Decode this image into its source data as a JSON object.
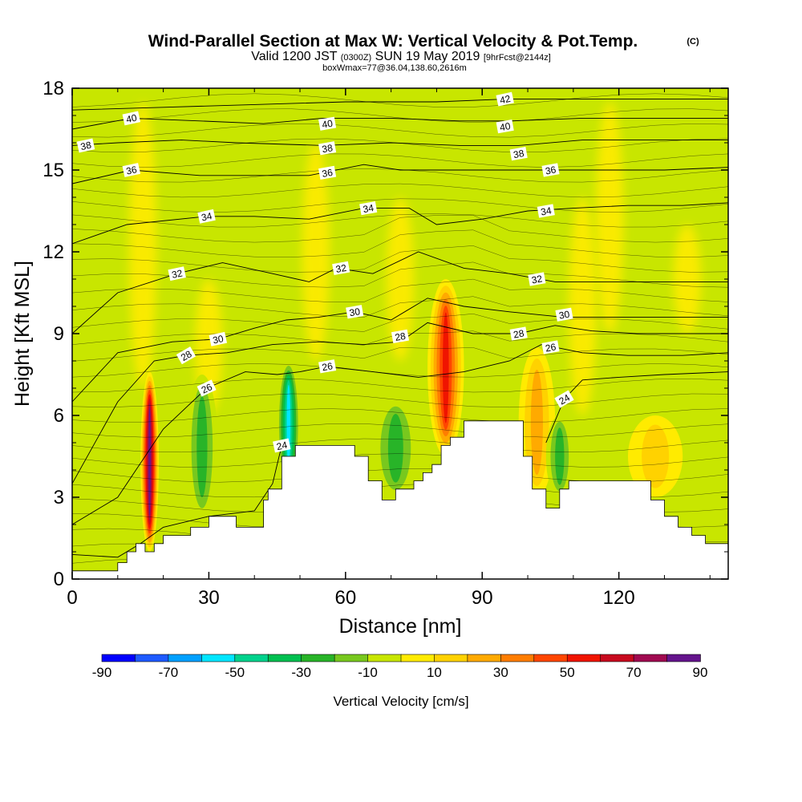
{
  "chart_data": {
    "type": "heatmap",
    "title": "Wind-Parallel Section at Max W: Vertical Velocity & Pot.Temp.",
    "title_mark": "(C)",
    "subtitle_pre": "Valid 1200 JST",
    "subtitle_utc": "(0300Z)",
    "subtitle_date": "SUN 19 May 2019",
    "subtitle_fcst": "[9hrFcst@2144z]",
    "subtitle2": "boxWmax=77@36.04,138.60,2616m",
    "xlabel": "Distance [nm]",
    "ylabel": "Height [Kft MSL]",
    "xlim": [
      0,
      144
    ],
    "ylim": [
      0,
      18
    ],
    "x_ticks": [
      "0",
      "30",
      "60",
      "90",
      "120"
    ],
    "y_ticks": [
      "0",
      "3",
      "6",
      "9",
      "12",
      "15",
      "18"
    ],
    "colorbar": {
      "label": "Vertical Velocity [cm/s]",
      "tick_labels": [
        "-90",
        "-70",
        "-50",
        "-30",
        "-10",
        "10",
        "30",
        "50",
        "70",
        "90"
      ],
      "colors": [
        "#0000ff",
        "#1e5aff",
        "#00a0ff",
        "#00e6ff",
        "#00d28c",
        "#00c050",
        "#28b428",
        "#78c81e",
        "#c8e600",
        "#ffeb00",
        "#ffd200",
        "#ffaa00",
        "#ff7d00",
        "#ff4600",
        "#f01400",
        "#c80a1e",
        "#a00a50",
        "#64148c"
      ]
    },
    "velocity_cells": [
      {
        "x": [
          15,
          19
        ],
        "y": [
          1.0,
          7.6
        ],
        "w": 90
      },
      {
        "x": [
          45,
          50
        ],
        "y": [
          3.3,
          8.0
        ],
        "w": -60
      },
      {
        "x": [
          78,
          86
        ],
        "y": [
          4.5,
          11.0
        ],
        "w": 60
      },
      {
        "x": [
          66,
          76
        ],
        "y": [
          3.0,
          6.6
        ],
        "w": -30
      },
      {
        "x": [
          25,
          32
        ],
        "y": [
          2.2,
          7.5
        ],
        "w": -30
      },
      {
        "x": [
          98,
          106
        ],
        "y": [
          3.0,
          8.5
        ],
        "w": 25
      },
      {
        "x": [
          122,
          134
        ],
        "y": [
          3.0,
          6.0
        ],
        "w": 15
      },
      {
        "x": [
          104,
          110
        ],
        "y": [
          3.0,
          6.0
        ],
        "w": -30
      }
    ],
    "terrain": [
      [
        0,
        0.3
      ],
      [
        10,
        0.3
      ],
      [
        10,
        0.6
      ],
      [
        12,
        0.6
      ],
      [
        12,
        1.0
      ],
      [
        14,
        1.0
      ],
      [
        14,
        1.3
      ],
      [
        16,
        1.3
      ],
      [
        16,
        1.0
      ],
      [
        18,
        1.0
      ],
      [
        18,
        1.3
      ],
      [
        20,
        1.3
      ],
      [
        20,
        1.6
      ],
      [
        26,
        1.6
      ],
      [
        26,
        1.9
      ],
      [
        30,
        1.9
      ],
      [
        30,
        2.3
      ],
      [
        36,
        2.3
      ],
      [
        36,
        1.9
      ],
      [
        42,
        1.9
      ],
      [
        42,
        2.9
      ],
      [
        43,
        2.9
      ],
      [
        43,
        3.3
      ],
      [
        46,
        3.3
      ],
      [
        46,
        4.5
      ],
      [
        49,
        4.5
      ],
      [
        49,
        4.9
      ],
      [
        62,
        4.9
      ],
      [
        62,
        4.5
      ],
      [
        65,
        4.5
      ],
      [
        65,
        3.6
      ],
      [
        68,
        3.6
      ],
      [
        68,
        2.9
      ],
      [
        71,
        2.9
      ],
      [
        71,
        3.3
      ],
      [
        75,
        3.3
      ],
      [
        75,
        3.6
      ],
      [
        77,
        3.6
      ],
      [
        77,
        3.9
      ],
      [
        79,
        3.9
      ],
      [
        79,
        4.2
      ],
      [
        81,
        4.2
      ],
      [
        81,
        4.9
      ],
      [
        83,
        4.9
      ],
      [
        83,
        5.2
      ],
      [
        86,
        5.2
      ],
      [
        86,
        5.8
      ],
      [
        99,
        5.8
      ],
      [
        99,
        4.5
      ],
      [
        101,
        4.5
      ],
      [
        101,
        3.3
      ],
      [
        104,
        3.3
      ],
      [
        104,
        2.6
      ],
      [
        107,
        2.6
      ],
      [
        107,
        3.3
      ],
      [
        109,
        3.3
      ],
      [
        109,
        3.6
      ],
      [
        127,
        3.6
      ],
      [
        127,
        2.9
      ],
      [
        130,
        2.9
      ],
      [
        130,
        2.3
      ],
      [
        133,
        2.3
      ],
      [
        133,
        1.9
      ],
      [
        136,
        1.9
      ],
      [
        136,
        1.6
      ],
      [
        139,
        1.6
      ],
      [
        139,
        1.3
      ],
      [
        144,
        1.3
      ]
    ],
    "theta_levels": [
      {
        "level": "24",
        "label_at": [
          46,
          4.9
        ],
        "points": [
          [
            0,
            0.9
          ],
          [
            10,
            0.8
          ],
          [
            15,
            1.3
          ],
          [
            20,
            1.9
          ],
          [
            30,
            2.3
          ],
          [
            40,
            2.5
          ],
          [
            44,
            3.5
          ],
          [
            46,
            4.9
          ]
        ]
      },
      {
        "level": "24",
        "label_at": [
          108,
          6.6
        ],
        "points": [
          [
            104,
            5.0
          ],
          [
            108,
            6.6
          ],
          [
            112,
            7.3
          ],
          [
            120,
            7.4
          ],
          [
            130,
            7.5
          ],
          [
            144,
            7.6
          ]
        ]
      },
      {
        "level": "26",
        "label_at": [
          29.5,
          7.0
        ],
        "points": [
          [
            0,
            2.0
          ],
          [
            10,
            3.0
          ],
          [
            20,
            5.5
          ],
          [
            29.5,
            7.0
          ],
          [
            38,
            7.6
          ],
          [
            45,
            7.5
          ],
          [
            50,
            7.6
          ],
          [
            56,
            7.8
          ],
          [
            66,
            7.6
          ],
          [
            76,
            7.4
          ],
          [
            86,
            7.6
          ],
          [
            96,
            8.0
          ],
          [
            103,
            8.6
          ],
          [
            112,
            8.3
          ],
          [
            122,
            8.2
          ],
          [
            134,
            8.2
          ],
          [
            144,
            8.3
          ]
        ]
      },
      {
        "level": "28",
        "label_at": [
          25,
          8.2
        ],
        "points": [
          [
            0,
            3.5
          ],
          [
            10,
            6.5
          ],
          [
            18,
            8.0
          ],
          [
            25,
            8.2
          ],
          [
            34,
            8.3
          ],
          [
            44,
            8.6
          ],
          [
            54,
            8.7
          ],
          [
            64,
            8.6
          ],
          [
            72,
            8.7
          ],
          [
            78,
            9.4
          ],
          [
            88,
            9.0
          ],
          [
            98,
            9.0
          ],
          [
            106,
            9.3
          ],
          [
            114,
            9.1
          ],
          [
            124,
            9.0
          ],
          [
            134,
            9.0
          ],
          [
            144,
            9.0
          ]
        ]
      },
      {
        "level": "30",
        "label_at": [
          32,
          8.8
        ],
        "points": [
          [
            0,
            6.5
          ],
          [
            10,
            8.3
          ],
          [
            22,
            8.7
          ],
          [
            32,
            8.8
          ],
          [
            40,
            9.2
          ],
          [
            47,
            9.5
          ],
          [
            54,
            9.6
          ],
          [
            62,
            9.8
          ],
          [
            70,
            9.5
          ],
          [
            78,
            10.3
          ],
          [
            86,
            10.0
          ],
          [
            96,
            9.8
          ],
          [
            108,
            9.6
          ],
          [
            118,
            9.6
          ],
          [
            130,
            9.6
          ],
          [
            144,
            9.6
          ]
        ]
      },
      {
        "level": "32",
        "label_at": [
          23,
          11.2
        ],
        "points": [
          [
            0,
            9.0
          ],
          [
            10,
            10.5
          ],
          [
            23,
            11.2
          ],
          [
            33,
            11.6
          ],
          [
            44,
            11.2
          ],
          [
            52,
            10.9
          ],
          [
            58,
            11.4
          ],
          [
            66,
            11.2
          ],
          [
            76,
            12.0
          ],
          [
            86,
            11.4
          ],
          [
            96,
            11.2
          ],
          [
            106,
            10.9
          ],
          [
            116,
            10.9
          ],
          [
            130,
            10.9
          ],
          [
            144,
            10.9
          ]
        ]
      },
      {
        "level": "34",
        "label_at": [
          29.5,
          13.3
        ],
        "points": [
          [
            0,
            12.3
          ],
          [
            12,
            13.0
          ],
          [
            29.5,
            13.3
          ],
          [
            40,
            13.3
          ],
          [
            52,
            13.2
          ],
          [
            64,
            13.6
          ],
          [
            74,
            13.6
          ],
          [
            80,
            13.0
          ],
          [
            90,
            13.2
          ],
          [
            100,
            13.5
          ],
          [
            110,
            13.6
          ],
          [
            122,
            13.7
          ],
          [
            134,
            13.7
          ],
          [
            144,
            13.8
          ]
        ]
      },
      {
        "level": "36",
        "label_at": [
          13,
          15.0
        ],
        "points": [
          [
            0,
            14.5
          ],
          [
            13,
            15.0
          ],
          [
            28,
            14.8
          ],
          [
            40,
            14.8
          ],
          [
            52,
            14.8
          ],
          [
            64,
            15.2
          ],
          [
            72,
            15.0
          ],
          [
            84,
            15.0
          ],
          [
            96,
            15.0
          ],
          [
            106,
            15.0
          ],
          [
            118,
            15.0
          ],
          [
            130,
            15.0
          ],
          [
            144,
            15.1
          ]
        ]
      },
      {
        "level": "38",
        "label_at": [
          3,
          15.9
        ],
        "points": [
          [
            0,
            15.9
          ],
          [
            10,
            16.0
          ],
          [
            24,
            16.1
          ],
          [
            36,
            16.0
          ],
          [
            55,
            15.9
          ],
          [
            70,
            16.0
          ],
          [
            85,
            15.9
          ],
          [
            98,
            15.9
          ],
          [
            112,
            16.1
          ],
          [
            128,
            16.1
          ],
          [
            144,
            16.1
          ]
        ]
      },
      {
        "level": "40",
        "label_at": [
          13,
          16.9
        ],
        "points": [
          [
            0,
            16.5
          ],
          [
            13,
            16.9
          ],
          [
            28,
            16.8
          ],
          [
            42,
            16.7
          ],
          [
            55,
            16.9
          ],
          [
            70,
            16.9
          ],
          [
            85,
            16.8
          ],
          [
            96,
            16.8
          ],
          [
            112,
            16.9
          ],
          [
            128,
            16.9
          ],
          [
            144,
            16.9
          ]
        ]
      },
      {
        "level": "42",
        "label_at": [
          95,
          17.6
        ],
        "points": [
          [
            0,
            17.2
          ],
          [
            20,
            17.3
          ],
          [
            40,
            17.4
          ],
          [
            60,
            17.5
          ],
          [
            80,
            17.5
          ],
          [
            95,
            17.6
          ],
          [
            110,
            17.6
          ],
          [
            130,
            17.6
          ],
          [
            144,
            17.6
          ]
        ]
      }
    ],
    "extra_label_positions": {
      "40": [
        [
          56,
          16.7
        ],
        [
          95,
          16.6
        ]
      ],
      "38": [
        [
          56,
          15.8
        ],
        [
          98,
          15.6
        ]
      ],
      "36": [
        [
          56,
          14.9
        ],
        [
          105,
          15.0
        ]
      ],
      "34": [
        [
          65,
          13.6
        ],
        [
          104,
          13.5
        ]
      ],
      "32": [
        [
          59,
          11.4
        ],
        [
          102,
          11.0
        ]
      ],
      "30": [
        [
          62,
          9.8
        ],
        [
          108,
          9.7
        ]
      ],
      "28": [
        [
          72,
          8.9
        ],
        [
          98,
          9.0
        ]
      ],
      "26": [
        [
          56,
          7.8
        ],
        [
          105,
          8.5
        ]
      ]
    }
  }
}
